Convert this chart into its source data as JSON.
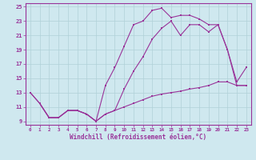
{
  "background_color": "#cfe8ef",
  "grid_color": "#b0d0d8",
  "line_color": "#993399",
  "xlabel": "Windchill (Refroidissement éolien,°C)",
  "xlim": [
    -0.5,
    23.5
  ],
  "ylim": [
    8.5,
    25.5
  ],
  "yticks": [
    9,
    11,
    13,
    15,
    17,
    19,
    21,
    23,
    25
  ],
  "xticks": [
    0,
    1,
    2,
    3,
    4,
    5,
    6,
    7,
    8,
    9,
    10,
    11,
    12,
    13,
    14,
    15,
    16,
    17,
    18,
    19,
    20,
    21,
    22,
    23
  ],
  "line1_x": [
    0,
    1,
    2,
    3,
    4,
    5,
    6,
    7,
    8,
    9,
    10,
    11,
    12,
    13,
    14,
    15,
    16,
    17,
    18,
    19,
    20,
    21,
    22,
    23
  ],
  "line1_y": [
    13,
    11.5,
    9.5,
    9.5,
    10.5,
    10.5,
    10.0,
    9.0,
    14.0,
    16.5,
    19.5,
    22.5,
    23.0,
    24.5,
    24.8,
    23.5,
    23.8,
    23.8,
    23.3,
    22.5,
    22.5,
    19.0,
    14.0,
    14.0
  ],
  "line2_x": [
    0,
    1,
    2,
    3,
    4,
    5,
    6,
    7,
    8,
    9,
    10,
    11,
    12,
    13,
    14,
    15,
    16,
    17,
    18,
    19,
    20,
    21,
    22,
    23
  ],
  "line2_y": [
    13,
    11.5,
    9.5,
    9.5,
    10.5,
    10.5,
    10.0,
    9.0,
    10.0,
    10.5,
    11.0,
    11.5,
    12.0,
    12.5,
    12.8,
    13.0,
    13.2,
    13.5,
    13.7,
    14.0,
    14.5,
    14.5,
    14.0,
    14.0
  ],
  "line3_x": [
    1,
    2,
    3,
    4,
    5,
    6,
    7,
    8,
    9,
    10,
    11,
    12,
    13,
    14,
    15,
    16,
    17,
    18,
    19,
    20,
    21,
    22,
    23
  ],
  "line3_y": [
    11.5,
    9.5,
    9.5,
    10.5,
    10.5,
    10.0,
    9.0,
    10.0,
    10.5,
    13.5,
    16.0,
    18.0,
    20.5,
    22.0,
    23.0,
    21.0,
    22.5,
    22.5,
    21.5,
    22.5,
    19.0,
    14.5,
    16.5
  ]
}
